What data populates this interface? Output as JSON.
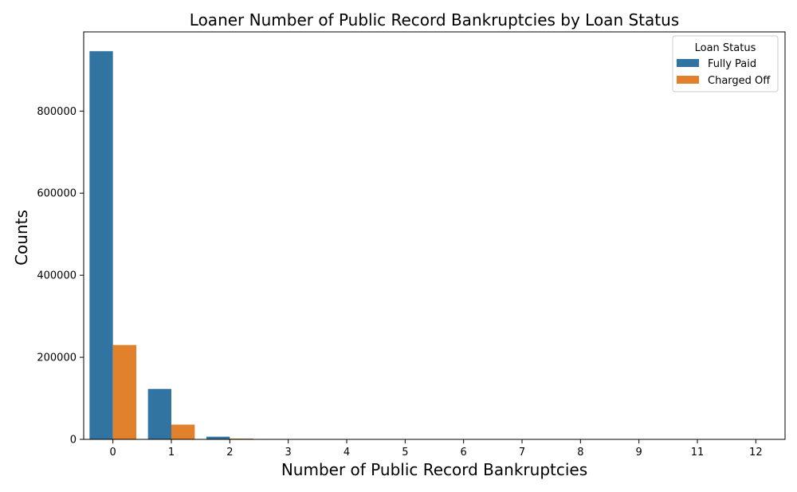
{
  "chart_data": {
    "type": "bar",
    "title": "Loaner Number of Public Record Bankruptcies by Loan Status",
    "xlabel": "Number of Public Record Bankruptcies",
    "ylabel": "Counts",
    "categories": [
      "0",
      "1",
      "2",
      "3",
      "4",
      "5",
      "6",
      "7",
      "8",
      "9",
      "11",
      "12"
    ],
    "series": [
      {
        "name": "Fully Paid",
        "color": "#3274a1",
        "values": [
          946000,
          123000,
          6500,
          1000,
          300,
          100,
          50,
          20,
          10,
          5,
          2,
          2
        ]
      },
      {
        "name": "Charged Off",
        "color": "#e1812c",
        "values": [
          230000,
          36000,
          2000,
          300,
          100,
          30,
          10,
          5,
          2,
          1,
          0,
          0
        ]
      }
    ],
    "ylim": [
      0,
      993000
    ],
    "yticks": [
      "0",
      "200000",
      "400000",
      "600000",
      "800000"
    ],
    "grid": false,
    "legend": {
      "title": "Loan Status",
      "position": "top-right"
    }
  }
}
